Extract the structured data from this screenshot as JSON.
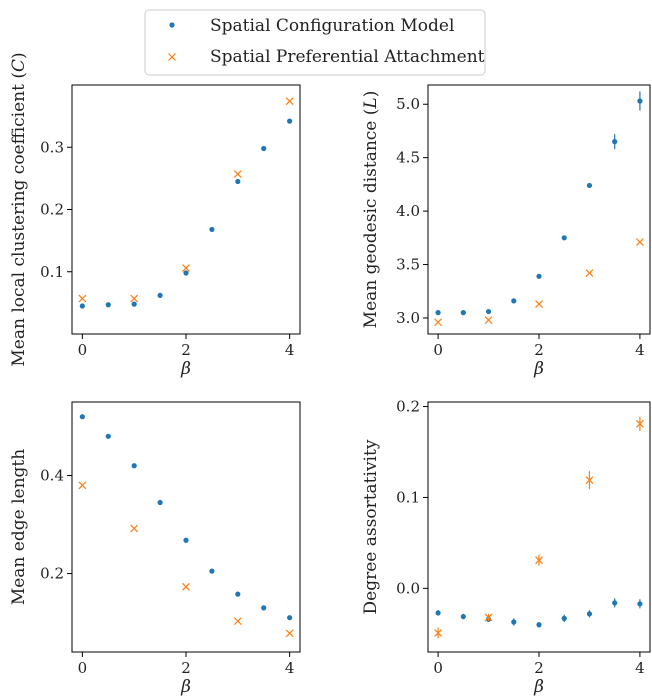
{
  "legend": {
    "items": [
      {
        "label": "Spatial Configuration Model",
        "color": "#1f77b4",
        "marker": "dot"
      },
      {
        "label": "Spatial Preferential Attachment",
        "color": "#ff7f0e",
        "marker": "x"
      }
    ]
  },
  "chart_data": [
    {
      "type": "scatter",
      "ylabel": "Mean local clustering coefficient (C)",
      "xlabel": "β",
      "xlim": [
        -0.2,
        4.2
      ],
      "ylim": [
        0.0,
        0.4
      ],
      "xticks": [
        0,
        2,
        4
      ],
      "yticks": [
        0.1,
        0.2,
        0.3
      ],
      "ytick_labels": [
        "0.1",
        "0.2",
        "0.3"
      ],
      "series": [
        {
          "name": "Spatial Configuration Model",
          "x": [
            0,
            0.5,
            1,
            1.5,
            2,
            2.5,
            3,
            3.5,
            4
          ],
          "y": [
            0.045,
            0.047,
            0.048,
            0.062,
            0.098,
            0.168,
            0.245,
            0.298,
            0.342
          ],
          "err": [
            0,
            0,
            0,
            0,
            0,
            0,
            0,
            0,
            0
          ]
        },
        {
          "name": "Spatial Preferential Attachment",
          "x": [
            0,
            1,
            2,
            3,
            4
          ],
          "y": [
            0.057,
            0.057,
            0.106,
            0.257,
            0.374
          ],
          "err": [
            0,
            0,
            0,
            0,
            0
          ]
        }
      ]
    },
    {
      "type": "scatter",
      "ylabel": "Mean geodesic distance (L)",
      "xlabel": "β",
      "xlim": [
        -0.2,
        4.2
      ],
      "ylim": [
        2.85,
        5.18
      ],
      "xticks": [
        0,
        2,
        4
      ],
      "yticks": [
        3.0,
        3.5,
        4.0,
        4.5,
        5.0
      ],
      "ytick_labels": [
        "3.0",
        "3.5",
        "4.0",
        "4.5",
        "5.0"
      ],
      "series": [
        {
          "name": "Spatial Configuration Model",
          "x": [
            0,
            0.5,
            1,
            1.5,
            2,
            2.5,
            3,
            3.5,
            4
          ],
          "y": [
            3.05,
            3.05,
            3.06,
            3.16,
            3.39,
            3.75,
            4.24,
            4.65,
            5.03
          ],
          "err": [
            0,
            0,
            0,
            0,
            0,
            0,
            0.02,
            0.07,
            0.09
          ]
        },
        {
          "name": "Spatial Preferential Attachment",
          "x": [
            0,
            1,
            2,
            3,
            4
          ],
          "y": [
            2.96,
            2.98,
            3.13,
            3.42,
            3.71
          ],
          "err": [
            0,
            0,
            0,
            0,
            0
          ]
        }
      ]
    },
    {
      "type": "scatter",
      "ylabel": "Mean edge length",
      "xlabel": "β",
      "xlim": [
        -0.2,
        4.2
      ],
      "ylim": [
        0.04,
        0.55
      ],
      "xticks": [
        0,
        2,
        4
      ],
      "yticks": [
        0.2,
        0.4
      ],
      "ytick_labels": [
        "0.2",
        "0.4"
      ],
      "series": [
        {
          "name": "Spatial Configuration Model",
          "x": [
            0,
            0.5,
            1,
            1.5,
            2,
            2.5,
            3,
            3.5,
            4
          ],
          "y": [
            0.52,
            0.48,
            0.42,
            0.345,
            0.268,
            0.205,
            0.158,
            0.13,
            0.11
          ],
          "err": [
            0,
            0,
            0,
            0,
            0,
            0,
            0,
            0,
            0
          ]
        },
        {
          "name": "Spatial Preferential Attachment",
          "x": [
            0,
            1,
            2,
            3,
            4
          ],
          "y": [
            0.38,
            0.292,
            0.173,
            0.103,
            0.078
          ],
          "err": [
            0,
            0,
            0,
            0,
            0
          ]
        }
      ]
    },
    {
      "type": "scatter",
      "ylabel": "Degree assortativity",
      "xlabel": "β",
      "xlim": [
        -0.2,
        4.2
      ],
      "ylim": [
        -0.07,
        0.205
      ],
      "xticks": [
        0,
        2,
        4
      ],
      "yticks": [
        0.0,
        0.1,
        0.2
      ],
      "ytick_labels": [
        "0.0",
        "0.1",
        "0.2"
      ],
      "series": [
        {
          "name": "Spatial Configuration Model",
          "x": [
            0,
            0.5,
            1,
            1.5,
            2,
            2.5,
            3,
            3.5,
            4
          ],
          "y": [
            -0.027,
            -0.031,
            -0.034,
            -0.037,
            -0.04,
            -0.033,
            -0.028,
            -0.016,
            -0.017
          ],
          "err": [
            0.003,
            0.003,
            0.003,
            0.004,
            0.003,
            0.004,
            0.004,
            0.005,
            0.005
          ]
        },
        {
          "name": "Spatial Preferential Attachment",
          "x": [
            0,
            1,
            2,
            3,
            4
          ],
          "y": [
            -0.049,
            -0.032,
            0.031,
            0.119,
            0.181
          ],
          "err": [
            0.006,
            0.004,
            0.006,
            0.01,
            0.008
          ]
        }
      ]
    }
  ]
}
